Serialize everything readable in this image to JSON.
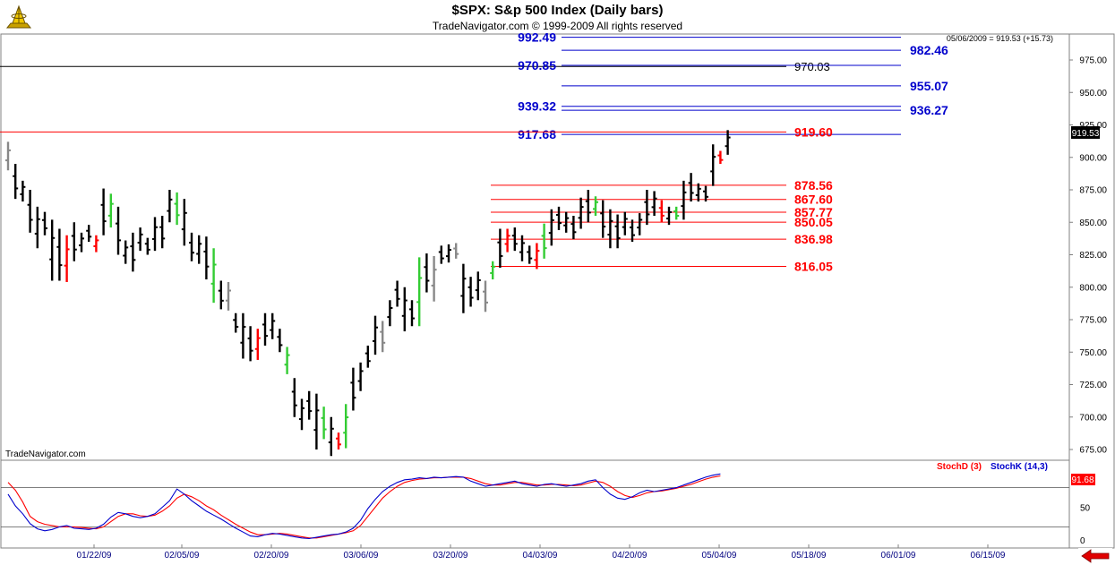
{
  "header": {
    "title": "$SPX:  S&p 500 Index  (Daily bars)",
    "copyright": "TradeNavigator.com © 1999-2009 All rights reserved"
  },
  "watermark": "TradeNavigator.com",
  "info_line": "05/06/2009 = 919.53 (+15.73)",
  "colors": {
    "bar_black": "#000000",
    "bar_green": "#33cc33",
    "bar_red": "#ff0000",
    "bar_gray": "#888888",
    "level_blue": "#0000cc",
    "level_red": "#ff0000",
    "stoch_d": "#ff0000",
    "stoch_k": "#0000cc",
    "axis_text": "#000000",
    "date_text": "#000080",
    "last_price_bg": "#000000"
  },
  "chart_data": {
    "type": "ohlc",
    "y_axis": {
      "min": 662,
      "max": 1000,
      "ticks": [
        675,
        700,
        725,
        750,
        775,
        800,
        825,
        850,
        875,
        900,
        925,
        950,
        975
      ]
    },
    "x_axis": {
      "tick_labels": [
        "01/22/09",
        "02/05/09",
        "02/20/09",
        "03/06/09",
        "03/20/09",
        "04/03/09",
        "04/20/09",
        "05/04/09",
        "05/18/09",
        "06/01/09",
        "06/15/09"
      ]
    },
    "last_price": "919.53",
    "levels_blue": [
      {
        "label": "992.49",
        "value": 992.49
      },
      {
        "label": "982.46",
        "value": 982.46
      },
      {
        "label": "970.85",
        "value": 970.85
      },
      {
        "label": "955.07",
        "value": 955.07
      },
      {
        "label": "939.32",
        "value": 939.32
      },
      {
        "label": "936.27",
        "value": 936.27
      },
      {
        "label": "917.68",
        "value": 917.68
      }
    ],
    "level_black": {
      "label": "970.03",
      "value": 970.03
    },
    "levels_red": [
      {
        "label": "919.60",
        "value": 919.6
      },
      {
        "label": "878.56",
        "value": 878.56
      },
      {
        "label": "867.60",
        "value": 867.6
      },
      {
        "label": "857.77",
        "value": 857.77
      },
      {
        "label": "850.05",
        "value": 850.05
      },
      {
        "label": "836.98",
        "value": 836.98
      },
      {
        "label": "816.05",
        "value": 816.05
      }
    ],
    "bars": [
      [
        912,
        890,
        "gray"
      ],
      [
        895,
        868,
        "black"
      ],
      [
        882,
        866,
        "black"
      ],
      [
        875,
        842,
        "black"
      ],
      [
        862,
        830,
        "black"
      ],
      [
        858,
        840,
        "black"
      ],
      [
        852,
        805,
        "black"
      ],
      [
        845,
        805,
        "black"
      ],
      [
        840,
        804,
        "red"
      ],
      [
        850,
        820,
        "black"
      ],
      [
        842,
        827,
        "black"
      ],
      [
        848,
        835,
        "black"
      ],
      [
        840,
        827,
        "red"
      ],
      [
        876,
        840,
        "black"
      ],
      [
        872,
        846,
        "green"
      ],
      [
        862,
        825,
        "black"
      ],
      [
        836,
        818,
        "black"
      ],
      [
        842,
        812,
        "black"
      ],
      [
        846,
        828,
        "black"
      ],
      [
        838,
        825,
        "black"
      ],
      [
        854,
        828,
        "black"
      ],
      [
        855,
        830,
        "black"
      ],
      [
        875,
        850,
        "black"
      ],
      [
        873,
        848,
        "green"
      ],
      [
        868,
        832,
        "black"
      ],
      [
        842,
        820,
        "black"
      ],
      [
        840,
        818,
        "black"
      ],
      [
        839,
        806,
        "black"
      ],
      [
        830,
        788,
        "green"
      ],
      [
        805,
        783,
        "black"
      ],
      [
        804,
        782,
        "gray"
      ],
      [
        780,
        765,
        "black"
      ],
      [
        780,
        745,
        "black"
      ],
      [
        770,
        743,
        "black"
      ],
      [
        768,
        744,
        "red"
      ],
      [
        780,
        755,
        "black"
      ],
      [
        780,
        760,
        "black"
      ],
      [
        768,
        750,
        "black"
      ],
      [
        754,
        733,
        "green"
      ],
      [
        730,
        700,
        "black"
      ],
      [
        714,
        690,
        "black"
      ],
      [
        720,
        698,
        "black"
      ],
      [
        718,
        675,
        "black"
      ],
      [
        708,
        683,
        "green"
      ],
      [
        700,
        670,
        "black"
      ],
      [
        688,
        675,
        "red"
      ],
      [
        710,
        676,
        "green"
      ],
      [
        738,
        705,
        "black"
      ],
      [
        742,
        720,
        "black"
      ],
      [
        755,
        738,
        "black"
      ],
      [
        778,
        748,
        "black"
      ],
      [
        774,
        750,
        "gray"
      ],
      [
        790,
        770,
        "black"
      ],
      [
        805,
        785,
        "black"
      ],
      [
        800,
        766,
        "black"
      ],
      [
        790,
        770,
        "black"
      ],
      [
        823,
        770,
        "green"
      ],
      [
        826,
        796,
        "black"
      ],
      [
        824,
        789,
        "gray"
      ],
      [
        832,
        818,
        "black"
      ],
      [
        833,
        819,
        "black"
      ],
      [
        834,
        822,
        "gray"
      ],
      [
        818,
        780,
        "black"
      ],
      [
        808,
        785,
        "black"
      ],
      [
        812,
        790,
        "black"
      ],
      [
        805,
        781,
        "gray"
      ],
      [
        820,
        806,
        "green"
      ],
      [
        845,
        815,
        "black"
      ],
      [
        845,
        827,
        "red"
      ],
      [
        846,
        828,
        "black"
      ],
      [
        840,
        820,
        "black"
      ],
      [
        832,
        818,
        "black"
      ],
      [
        834,
        814,
        "red"
      ],
      [
        849,
        822,
        "green"
      ],
      [
        860,
        832,
        "black"
      ],
      [
        862,
        844,
        "black"
      ],
      [
        858,
        842,
        "black"
      ],
      [
        855,
        837,
        "black"
      ],
      [
        869,
        845,
        "black"
      ],
      [
        875,
        850,
        "black"
      ],
      [
        870,
        855,
        "green"
      ],
      [
        867,
        838,
        "black"
      ],
      [
        860,
        830,
        "black"
      ],
      [
        856,
        830,
        "black"
      ],
      [
        858,
        840,
        "black"
      ],
      [
        852,
        835,
        "black"
      ],
      [
        857,
        840,
        "black"
      ],
      [
        875,
        848,
        "black"
      ],
      [
        874,
        855,
        "black"
      ],
      [
        867,
        850,
        "red"
      ],
      [
        862,
        848,
        "black"
      ],
      [
        862,
        852,
        "green"
      ],
      [
        882,
        852,
        "black"
      ],
      [
        888,
        866,
        "black"
      ],
      [
        880,
        866,
        "black"
      ],
      [
        878,
        866,
        "black"
      ],
      [
        910,
        878,
        "black"
      ],
      [
        905,
        895,
        "red"
      ],
      [
        921,
        902,
        "black"
      ]
    ],
    "stochastic": {
      "legend_d": "StochD (3)",
      "legend_k": "StochK (14,3)",
      "value_label": "91.68",
      "y_ticks": [
        0,
        25,
        50,
        75,
        100
      ],
      "reference_levels": [
        20,
        80
      ],
      "k": [
        70,
        52,
        40,
        25,
        17,
        14,
        16,
        20,
        22,
        18,
        17,
        16,
        18,
        24,
        35,
        42,
        40,
        36,
        34,
        36,
        40,
        50,
        60,
        78,
        70,
        60,
        52,
        44,
        38,
        32,
        25,
        18,
        12,
        6,
        5,
        8,
        10,
        9,
        7,
        5,
        3,
        2,
        4,
        6,
        8,
        9,
        12,
        18,
        30,
        48,
        62,
        74,
        82,
        88,
        92,
        93,
        95,
        94,
        96,
        95,
        96,
        97,
        96,
        90,
        86,
        82,
        84,
        86,
        88,
        90,
        86,
        84,
        82,
        85,
        86,
        84,
        82,
        84,
        86,
        90,
        92,
        80,
        70,
        64,
        62,
        66,
        72,
        76,
        74,
        76,
        78,
        80,
        84,
        88,
        92,
        96,
        99,
        101
      ],
      "d": [
        88,
        76,
        58,
        36,
        28,
        24,
        22,
        20,
        20,
        20,
        19,
        18,
        17,
        20,
        28,
        36,
        40,
        40,
        37,
        36,
        38,
        44,
        52,
        64,
        70,
        66,
        60,
        52,
        46,
        38,
        31,
        24,
        18,
        12,
        8,
        8,
        9,
        10,
        9,
        7,
        5,
        3,
        3,
        5,
        7,
        9,
        11,
        14,
        22,
        36,
        50,
        64,
        74,
        82,
        88,
        91,
        93,
        94,
        95,
        95,
        96,
        96,
        96,
        94,
        90,
        86,
        84,
        84,
        86,
        88,
        88,
        86,
        84,
        84,
        85,
        85,
        84,
        83,
        84,
        87,
        90,
        88,
        82,
        74,
        68,
        65,
        68,
        72,
        74,
        75,
        77,
        79,
        82,
        85,
        89,
        93,
        96,
        98
      ]
    }
  }
}
